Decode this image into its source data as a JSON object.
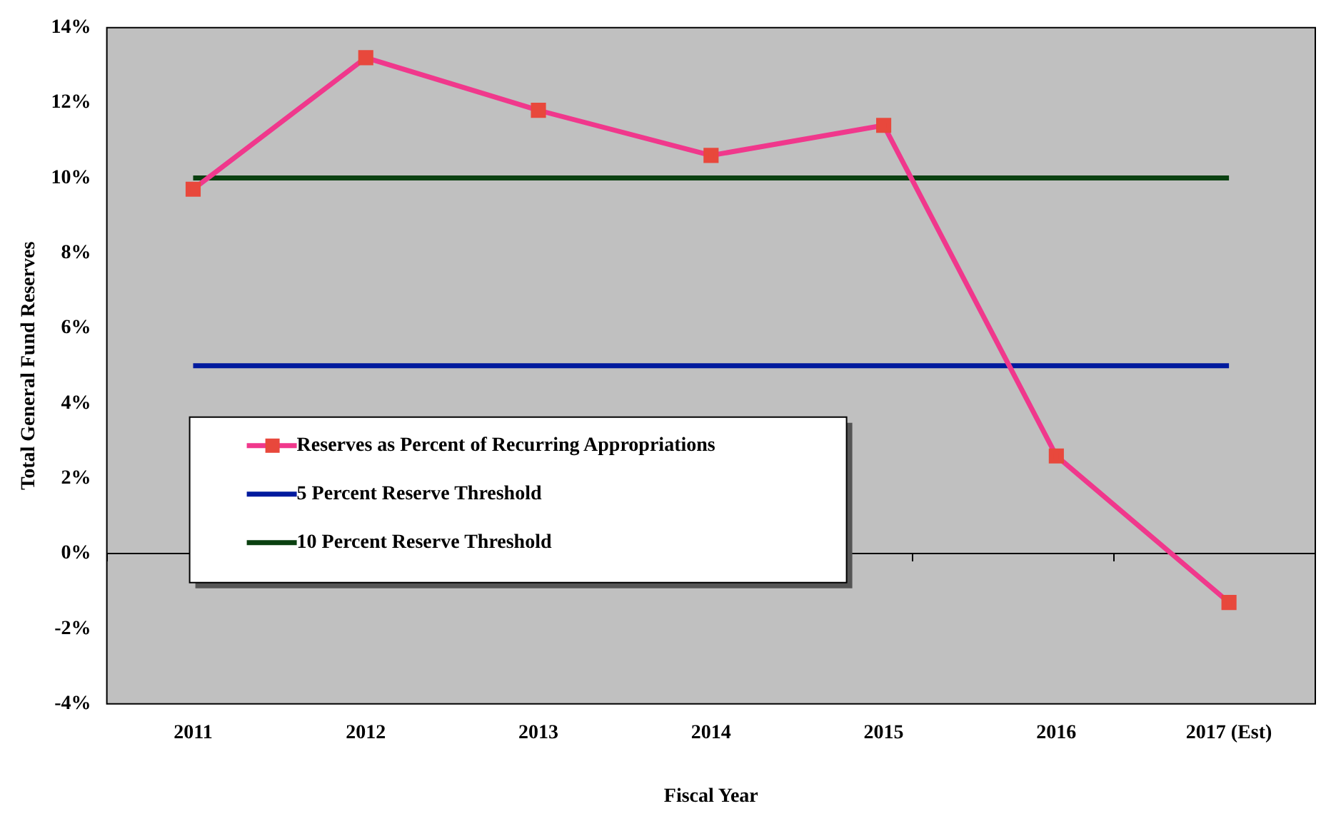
{
  "chart_data": {
    "type": "line",
    "xlabel": "Fiscal Year",
    "ylabel": "Total General Fund Reserves",
    "categories": [
      "2011",
      "2012",
      "2013",
      "2014",
      "2015",
      "2016",
      "2017 (Est)"
    ],
    "series": [
      {
        "name": "Reserves as Percent of Recurring Appropriations",
        "color": "#f0388c",
        "values": [
          9.7,
          13.2,
          11.8,
          10.6,
          11.4,
          2.6,
          -1.3
        ],
        "marker": "square"
      }
    ],
    "ref_lines": [
      {
        "axis": "y",
        "value": 5,
        "label": "5 Percent Reserve Threshold",
        "color": "#001a9e",
        "line_style": "solid"
      },
      {
        "axis": "y",
        "value": 10,
        "label": "10 Percent Reserve Threshold",
        "color": "#0a4010",
        "line_style": "solid"
      }
    ],
    "ylim": [
      -4,
      14
    ],
    "yticks": [
      {
        "value": -4,
        "label": "-4%"
      },
      {
        "value": -2,
        "label": "-2%"
      },
      {
        "value": 0,
        "label": "0%"
      },
      {
        "value": 2,
        "label": "2%"
      },
      {
        "value": 4,
        "label": "4%"
      },
      {
        "value": 6,
        "label": "6%"
      },
      {
        "value": 8,
        "label": "8%"
      },
      {
        "value": 10,
        "label": "10%"
      },
      {
        "value": 12,
        "label": "12%"
      },
      {
        "value": 14,
        "label": "14%"
      }
    ],
    "grid": false,
    "legend": "bottom left",
    "line_style": "solid"
  }
}
